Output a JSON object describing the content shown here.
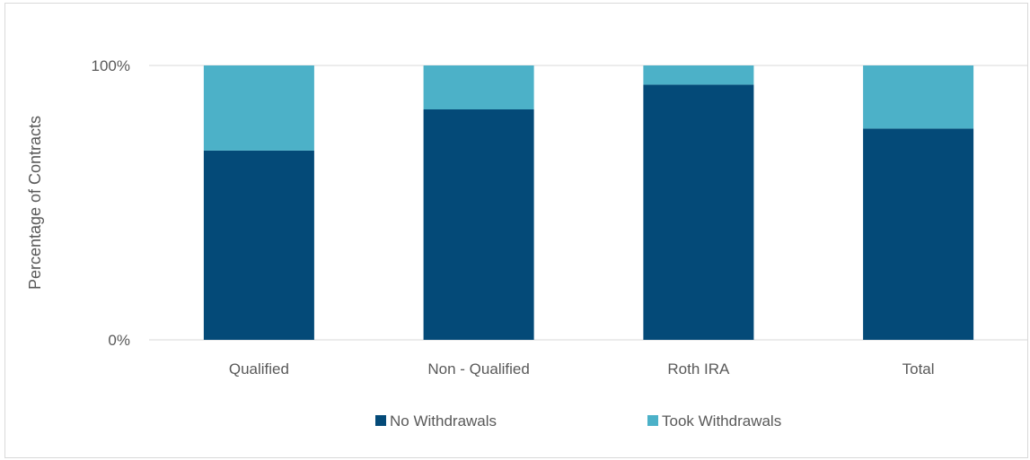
{
  "chart_data": {
    "type": "bar",
    "stacked": true,
    "percent_stacked": true,
    "categories": [
      "Qualified",
      "Non - Qualified",
      "Roth IRA",
      "Total"
    ],
    "series": [
      {
        "name": "No Withdrawals",
        "color": "#044a78",
        "values": [
          69,
          84,
          93,
          77
        ]
      },
      {
        "name": "Took Withdrawals",
        "color": "#4cb1c8",
        "values": [
          31,
          16,
          7,
          23
        ]
      }
    ],
    "yticks": [
      "0%",
      "100%"
    ],
    "ylim": [
      0,
      100
    ],
    "ylabel": "Percentage of Contracts",
    "xlabel": "",
    "grid": true,
    "legend_position": "bottom"
  }
}
